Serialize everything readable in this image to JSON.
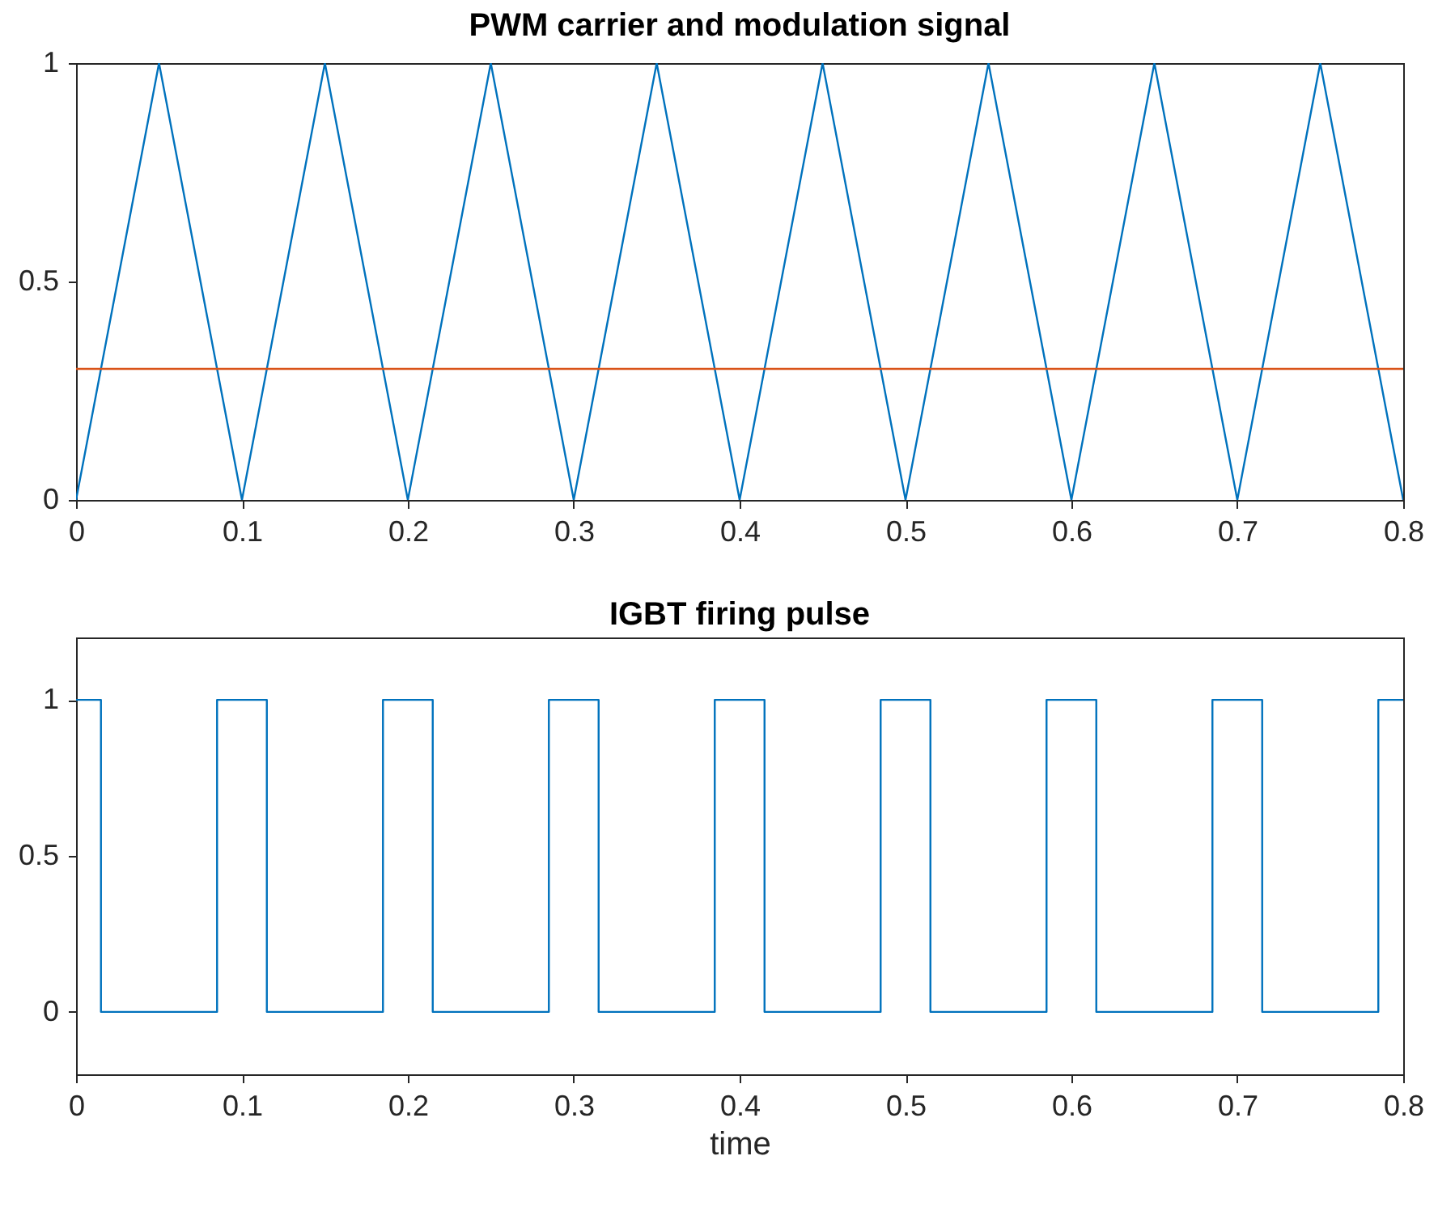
{
  "chart_data": [
    {
      "type": "line",
      "title": "PWM carrier and modulation signal",
      "xlim": [
        0,
        0.8
      ],
      "xticks": [
        0,
        0.1,
        0.2,
        0.3,
        0.4,
        0.5,
        0.6,
        0.7,
        0.8
      ],
      "ylim": [
        0,
        1
      ],
      "yticks": [
        0,
        0.5,
        1
      ],
      "grid": false,
      "series": [
        {
          "color": "#0072bd",
          "x": [
            0,
            0.05,
            0.1,
            0.15,
            0.2,
            0.25,
            0.3,
            0.35,
            0.4,
            0.45,
            0.5,
            0.55,
            0.6,
            0.65,
            0.7,
            0.75,
            0.8
          ],
          "values": [
            0,
            1,
            0,
            1,
            0,
            1,
            0,
            1,
            0,
            1,
            0,
            1,
            0,
            1,
            0,
            1,
            0
          ]
        },
        {
          "color": "#d95319",
          "x": [
            0,
            0.8
          ],
          "values": [
            0.3,
            0.3
          ]
        }
      ]
    },
    {
      "type": "line",
      "title": "IGBT firing pulse",
      "xlabel": "time",
      "xlim": [
        0,
        0.8
      ],
      "xticks": [
        0,
        0.1,
        0.2,
        0.3,
        0.4,
        0.5,
        0.6,
        0.7,
        0.8
      ],
      "ylim": [
        -0.2,
        1.2
      ],
      "yticks": [
        0,
        0.5,
        1
      ],
      "grid": false,
      "series": [
        {
          "color": "#0072bd",
          "x": [
            0,
            0.015,
            0.015,
            0.085,
            0.085,
            0.115,
            0.115,
            0.185,
            0.185,
            0.215,
            0.215,
            0.285,
            0.285,
            0.315,
            0.315,
            0.385,
            0.385,
            0.415,
            0.415,
            0.485,
            0.485,
            0.515,
            0.515,
            0.585,
            0.585,
            0.615,
            0.615,
            0.685,
            0.685,
            0.715,
            0.715,
            0.785,
            0.785,
            0.8
          ],
          "values": [
            1,
            1,
            0,
            0,
            1,
            1,
            0,
            0,
            1,
            1,
            0,
            0,
            1,
            1,
            0,
            0,
            1,
            1,
            0,
            0,
            1,
            1,
            0,
            0,
            1,
            1,
            0,
            0,
            1,
            1,
            0,
            0,
            1,
            1
          ]
        }
      ]
    }
  ]
}
